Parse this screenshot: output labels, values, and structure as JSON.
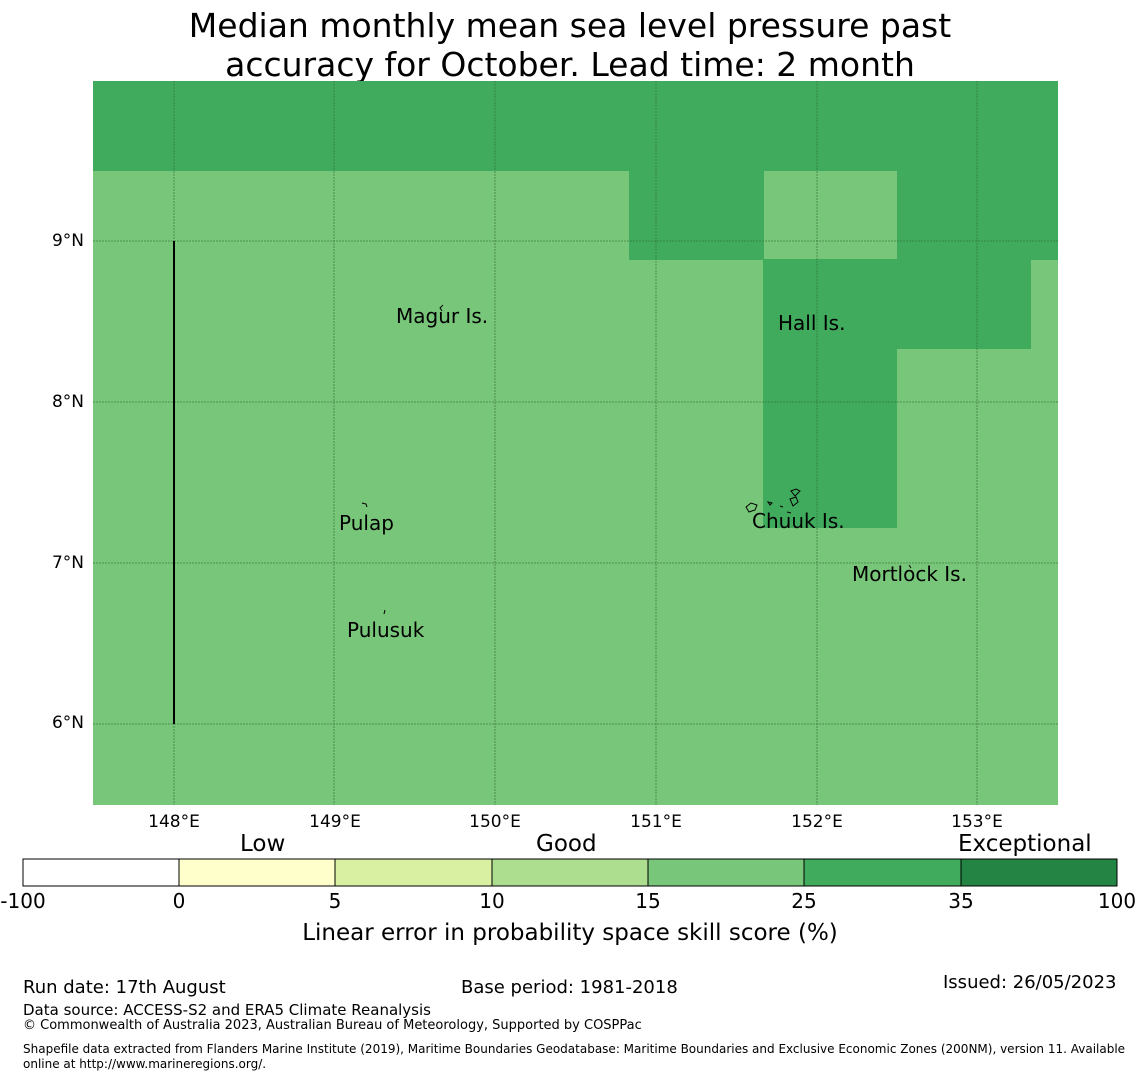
{
  "title": {
    "line1": "Median monthly mean sea level pressure past",
    "line2": "accuracy for October. Lead time: 2 month"
  },
  "map": {
    "lat_labels": [
      "9°N",
      "8°N",
      "7°N",
      "6°N"
    ],
    "lon_labels": [
      "148°E",
      "149°E",
      "150°E",
      "151°E",
      "152°E",
      "153°E"
    ],
    "places": [
      "Magur Is.",
      "Hall Is.",
      "Pulap",
      "Chuuk Is.",
      "Mortlock Is.",
      "Pulusuk"
    ],
    "colors": {
      "good_15_25": "#78c679",
      "good_25_35": "#41ab5d",
      "grid": "#2d6b34"
    }
  },
  "legend": {
    "categories": [
      "Low",
      "Good",
      "Exceptional"
    ],
    "ticks": [
      "-100",
      "0",
      "5",
      "10",
      "15",
      "25",
      "35",
      "100"
    ],
    "colors": [
      "#ffffff",
      "#ffffcc",
      "#d9f0a3",
      "#addd8e",
      "#78c679",
      "#41ab5d",
      "#238443"
    ],
    "label": "Linear error in probability space skill score (%)"
  },
  "footer": {
    "run_date": "Run date: 17th August",
    "base_period": "Base period: 1981-2018",
    "issued": "Issued: 26/05/2023",
    "data_source": "Data source: ACCESS-S2 and ERA5 Climate Reanalysis",
    "copyright": "© Commonwealth of Australia 2023, Australian Bureau of Meteorology, Supported by COSPPac",
    "shapefile_line1": "Shapefile data extracted from Flanders Marine Institute (2019), Maritime Boundaries Geodatabase: Maritime Boundaries and Exclusive Economic Zones (200NM), version 11. Available",
    "shapefile_line2": "online at http://www.marineregions.org/."
  }
}
